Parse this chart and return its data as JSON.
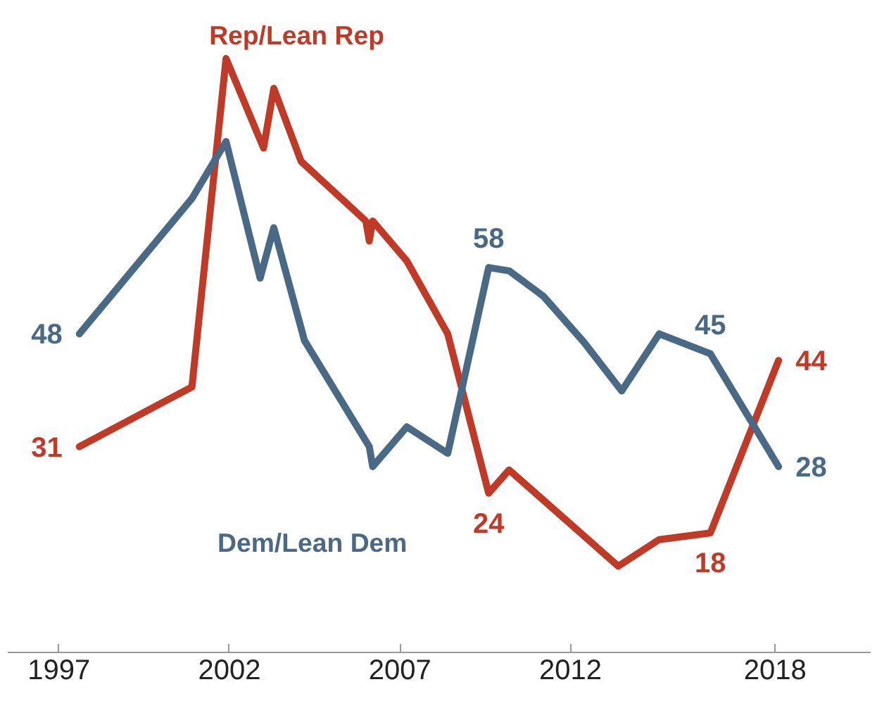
{
  "chart_data": {
    "type": "line",
    "xlim": [
      1995.5,
      2020.8
    ],
    "xticks": [
      1997,
      2002,
      2007,
      2012,
      2018
    ],
    "tick_labels": "x",
    "grid": false,
    "marker": "none",
    "line_style": "solid",
    "series": [
      {
        "name": "Rep/Lean Rep",
        "color": "#bf3a27",
        "x": [
          1997.6,
          2000.9,
          2001.9,
          2003.0,
          2003.3,
          2004.1,
          2006.0,
          2006.1,
          2006.2,
          2007.2,
          2008.4,
          2009.6,
          2010.2,
          2013.4,
          2014.6,
          2016.1,
          2018.1
        ],
        "values": [
          31,
          40,
          89.5,
          76,
          85,
          74,
          65,
          62,
          65,
          59,
          48,
          24,
          27.5,
          13,
          17,
          18,
          44
        ],
        "value_labels": [
          "31",
          null,
          null,
          null,
          null,
          null,
          null,
          null,
          null,
          null,
          null,
          "24",
          null,
          null,
          null,
          "18",
          "44"
        ]
      },
      {
        "name": "Dem/Lean Dem",
        "color": "#4a6985",
        "x": [
          1997.6,
          2000.9,
          2001.9,
          2002.9,
          2003.3,
          2004.2,
          2006.1,
          2006.2,
          2007.2,
          2008.4,
          2009.6,
          2010.2,
          2011.2,
          2012.4,
          2013.5,
          2014.6,
          2016.1,
          2018.1
        ],
        "values": [
          48,
          68.4,
          77,
          56.4,
          64,
          47,
          31,
          28,
          34,
          30,
          58,
          57.5,
          53.7,
          46.7,
          39.4,
          48,
          45,
          28
        ],
        "value_labels": [
          "48",
          null,
          null,
          null,
          null,
          null,
          null,
          null,
          null,
          null,
          "58",
          null,
          null,
          null,
          null,
          null,
          "45",
          "28"
        ]
      }
    ]
  }
}
